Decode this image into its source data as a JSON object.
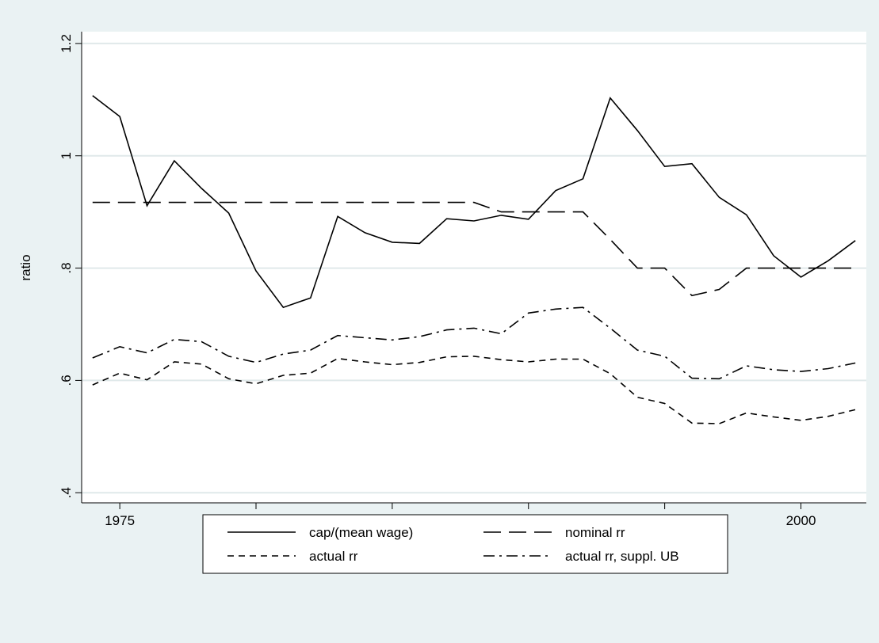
{
  "chart_data": {
    "type": "line",
    "x_label": "year",
    "y_label": "ratio",
    "x": [
      1974,
      1975,
      1976,
      1977,
      1978,
      1979,
      1980,
      1981,
      1982,
      1983,
      1984,
      1985,
      1986,
      1987,
      1988,
      1989,
      1990,
      1991,
      1992,
      1993,
      1994,
      1995,
      1996,
      1997,
      1998,
      1999,
      2000,
      2001,
      2002
    ],
    "series": [
      {
        "name": "cap/(mean wage)",
        "color": "#000000",
        "linestyle": "solid",
        "values": [
          1.107,
          1.07,
          0.911,
          0.991,
          0.942,
          0.898,
          0.795,
          0.73,
          0.747,
          0.892,
          0.863,
          0.846,
          0.844,
          0.888,
          0.884,
          0.894,
          0.887,
          0.938,
          0.959,
          1.103,
          1.045,
          0.981,
          0.986,
          0.926,
          0.895,
          0.822,
          0.784,
          0.813,
          0.849
        ]
      },
      {
        "name": "nominal rr",
        "color": "#000000",
        "linestyle": "longdash",
        "values": [
          0.917,
          0.917,
          0.917,
          0.917,
          0.917,
          0.917,
          0.917,
          0.917,
          0.917,
          0.917,
          0.917,
          0.917,
          0.917,
          0.917,
          0.917,
          0.9,
          0.9,
          0.9,
          0.9,
          0.851,
          0.8,
          0.8,
          0.751,
          0.762,
          0.8,
          0.8,
          0.8,
          0.8,
          0.8
        ]
      },
      {
        "name": "actual rr",
        "color": "#000000",
        "linestyle": "shortdash",
        "values": [
          0.592,
          0.613,
          0.601,
          0.633,
          0.629,
          0.603,
          0.594,
          0.609,
          0.613,
          0.639,
          0.633,
          0.628,
          0.632,
          0.642,
          0.643,
          0.637,
          0.633,
          0.638,
          0.638,
          0.612,
          0.57,
          0.559,
          0.524,
          0.523,
          0.542,
          0.535,
          0.529,
          0.536,
          0.548
        ]
      },
      {
        "name": "actual rr, suppl. UB",
        "color": "#000000",
        "linestyle": "dashdot",
        "values": [
          0.64,
          0.66,
          0.649,
          0.673,
          0.669,
          0.643,
          0.632,
          0.647,
          0.654,
          0.68,
          0.676,
          0.672,
          0.678,
          0.69,
          0.693,
          0.683,
          0.72,
          0.727,
          0.73,
          0.693,
          0.654,
          0.643,
          0.604,
          0.603,
          0.626,
          0.619,
          0.616,
          0.621,
          0.631
        ]
      }
    ],
    "xlim": [
      1973.6,
      2002.4
    ],
    "xticks": [
      1975,
      1980,
      1985,
      1990,
      1995,
      2000
    ],
    "ylim": [
      0.382,
      1.221
    ],
    "yticks": [
      {
        "value": 0.4,
        "label": ".4"
      },
      {
        "value": 0.6,
        "label": ".6"
      },
      {
        "value": 0.8,
        "label": ".8"
      },
      1,
      1.2
    ],
    "grid": true,
    "legend": "bottom"
  }
}
